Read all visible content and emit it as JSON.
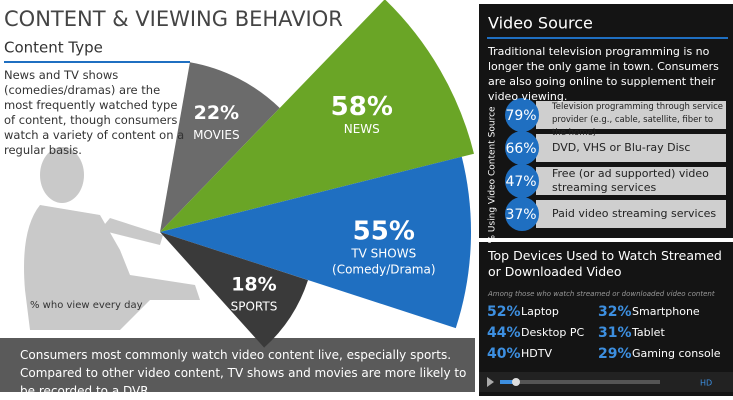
{
  "chart_data": [
    {
      "type": "fan",
      "title": "CONTENT & VIEWING BEHAVIOR",
      "subtitle": "Content Type",
      "description": "News and TV shows (comedies/dramas) are the most frequently watched type of content, though consumers watch a variety of content on a regular basis.",
      "note": "% who view every day",
      "categories": [
        "MOVIES",
        "NEWS",
        "TV SHOWS",
        "SPORTS"
      ],
      "sublabels": [
        null,
        null,
        "(Comedy/Drama)",
        null
      ],
      "values": [
        22,
        58,
        55,
        18
      ],
      "value_labels": [
        "22%",
        "58%",
        "55%",
        "18%"
      ],
      "colors": [
        "#6b6b6b",
        "#6aa526",
        "#1f6fc1",
        "#3a3a3a"
      ],
      "footer": "Consumers most commonly watch video content live,  especially sports. Compared to other video content, TV shows and movies are more likely to be recorded to a DVR."
    },
    {
      "type": "bar",
      "title": "Video Source",
      "subtitle": "Traditional television programming is no longer the only game in town. Consumers are also going online to supplement their video viewing.",
      "ylabel": "% Using Video Content Source",
      "categories": [
        "Television programming through service provider (e.g., cable, satellite, fiber to the home)",
        "DVD, VHS or Blu-ray Disc",
        "Free (or ad supported) video streaming services",
        "Paid video streaming services"
      ],
      "values": [
        79,
        66,
        47,
        37
      ],
      "value_labels": [
        "79%",
        "66%",
        "47%",
        "37%"
      ],
      "color": "#1f6fc1"
    },
    {
      "type": "stats",
      "title": "Top Devices Used to Watch Streamed or Downloaded Video",
      "subtitle": "Among those who watch streamed or downloaded video content",
      "categories": [
        "Laptop",
        "Smartphone",
        "Desktop PC",
        "Tablet",
        "HDTV",
        "Gaming console"
      ],
      "values": [
        52,
        32,
        44,
        31,
        40,
        29
      ],
      "value_labels": [
        "52%",
        "32%",
        "44%",
        "31%",
        "40%",
        "29%"
      ],
      "color": "#3d8fe0"
    }
  ]
}
